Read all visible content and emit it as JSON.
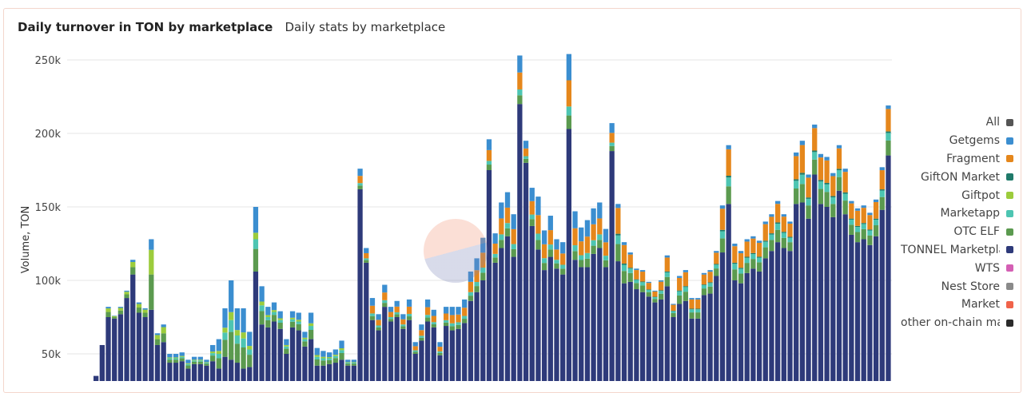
{
  "header": {
    "title": "Daily turnover in TON by marketplace",
    "subtitle": "Daily stats by marketplace"
  },
  "legend": [
    {
      "label": "All",
      "color": "#555555"
    },
    {
      "label": "Getgems",
      "color": "#3b8ed0"
    },
    {
      "label": "Fragment",
      "color": "#e5871c"
    },
    {
      "label": "GiftON Market",
      "color": "#1f7a6a"
    },
    {
      "label": "Giftpot",
      "color": "#9ccc3c"
    },
    {
      "label": "Marketapp",
      "color": "#4dc5b2"
    },
    {
      "label": "OTC ELF",
      "color": "#5b9a4f"
    },
    {
      "label": "TONNEL Marketplace",
      "color": "#2e3a7a"
    },
    {
      "label": "WTS",
      "color": "#d45fb4"
    },
    {
      "label": "Nest Store",
      "color": "#8a8a8a"
    },
    {
      "label": "Market",
      "color": "#f0634a"
    },
    {
      "label": "other on-chain marketplaces",
      "color": "#2b2b2b"
    }
  ],
  "chart_data": {
    "type": "bar",
    "stacked": true,
    "title": "Daily turnover in TON by marketplace",
    "subtitle": "Daily stats by marketplace",
    "ylabel": "Volume, TON",
    "xlabel": "",
    "ylim": [
      30000,
      250000
    ],
    "yticks": [
      {
        "value": 50000,
        "label": "50k"
      },
      {
        "value": 100000,
        "label": "100k"
      },
      {
        "value": 150000,
        "label": "150k"
      },
      {
        "value": 200000,
        "label": "200k"
      },
      {
        "value": 250000,
        "label": "250k"
      }
    ],
    "grid": true,
    "legend_position": "right",
    "series_colors": {
      "TONNEL Marketplace": "#2e3a7a",
      "OTC ELF": "#5b9a4f",
      "Giftpot": "#9ccc3c",
      "Marketapp": "#4dc5b2",
      "GiftON Market": "#1f7a6a",
      "Fragment": "#e5871c",
      "Getgems": "#3b8ed0"
    },
    "totals": [
      35000,
      56000,
      82000,
      76000,
      82000,
      93000,
      114000,
      85000,
      81000,
      128000,
      64000,
      70000,
      50000,
      50000,
      51000,
      46000,
      48000,
      48000,
      46000,
      56000,
      60000,
      81000,
      100000,
      81000,
      81000,
      65000,
      150000,
      96000,
      82000,
      85000,
      79000,
      60000,
      79000,
      78000,
      65000,
      78000,
      54000,
      52000,
      51000,
      53000,
      59000,
      46000,
      46000,
      176000,
      122000,
      88000,
      77000,
      97000,
      82000,
      86000,
      77000,
      87000,
      58000,
      70000,
      87000,
      80000,
      58000,
      82000,
      82000,
      82000,
      87000,
      106000,
      115000,
      129000,
      196000,
      132000,
      153000,
      160000,
      145000,
      253000,
      195000,
      163000,
      157000,
      134000,
      144000,
      128000,
      126000,
      254000,
      147000,
      136000,
      141000,
      149000,
      153000,
      135000,
      207000,
      152000,
      126000,
      119000,
      108000,
      107000,
      99000,
      93000,
      100000,
      117000,
      84000,
      103000,
      107000,
      88000,
      88000,
      105000,
      107000,
      120000,
      151000,
      192000,
      125000,
      120000,
      128000,
      130000,
      127000,
      140000,
      145000,
      154000,
      145000,
      140000,
      187000,
      195000,
      172000,
      206000,
      186000,
      184000,
      173000,
      192000,
      176000,
      154000,
      149000,
      151000,
      146000,
      155000,
      177000,
      219000
    ],
    "segments": [
      {
        "base": [
          35000,
          56000,
          75000,
          74000,
          77000,
          88000,
          104000,
          78000,
          75000,
          80000,
          56000,
          58000,
          44000,
          44000,
          45000,
          40000,
          43000,
          43000,
          42000,
          45000,
          40000,
          48000,
          46000,
          44000,
          40000,
          41000,
          106000,
          70000,
          68000,
          72000,
          67000,
          50000,
          68000,
          66000,
          55000,
          60000,
          42000,
          42000,
          43000,
          44000,
          46000,
          42000,
          42000,
          162000,
          112000,
          73000,
          66000,
          82000,
          72000,
          75000,
          67000,
          73000,
          50000,
          59000,
          72000,
          68000,
          49000,
          69000,
          66000,
          67000,
          71000,
          86000,
          92000,
          100000,
          175000,
          112000,
          122000,
          130000,
          116000,
          220000,
          180000,
          137000,
          121000,
          107000,
          116000,
          108000,
          104000,
          203000,
          114000,
          109000,
          109000,
          118000,
          122000,
          109000,
          188000,
          113000,
          98000,
          99000,
          94000,
          92000,
          89000,
          85000,
          87000,
          96000,
          75000,
          84000,
          86000,
          74000,
          74000,
          90000,
          91000,
          103000,
          119000,
          152000,
          100000,
          98000,
          105000,
          108000,
          106000,
          115000,
          120000,
          126000,
          122000,
          120000,
          152000,
          153000,
          142000,
          172000,
          152000,
          150000,
          143000,
          161000,
          145000,
          131000,
          126000,
          128000,
          124000,
          130000,
          148000,
          185000
        ]
      }
    ]
  }
}
